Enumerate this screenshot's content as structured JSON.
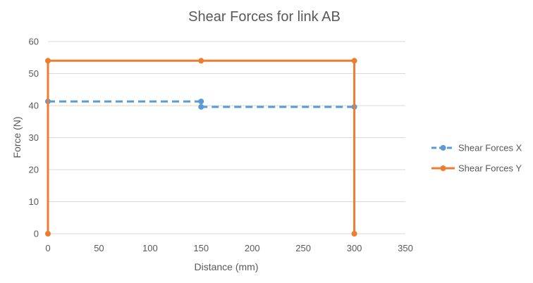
{
  "chart_data": {
    "type": "scatter",
    "title": "Shear Forces for link AB",
    "xlabel": "Distance (mm)",
    "ylabel": "Force (N)",
    "xlim": [
      0,
      350
    ],
    "ylim": [
      0,
      60
    ],
    "xticks": [
      0,
      50,
      100,
      150,
      200,
      250,
      300,
      350
    ],
    "yticks": [
      0,
      10,
      20,
      30,
      40,
      50,
      60
    ],
    "grid": "horizontal",
    "legend_position": "right",
    "series": [
      {
        "name": "Shear Forces X",
        "color": "#5b9bd5",
        "line_style": "dashed",
        "marker": "circle",
        "points": [
          [
            0,
            41.3
          ],
          [
            150,
            41.3
          ],
          [
            150,
            39.6
          ],
          [
            300,
            39.6
          ]
        ]
      },
      {
        "name": "Shear Forces Y",
        "color": "#ed7d31",
        "line_style": "solid",
        "marker": "circle",
        "points": [
          [
            0,
            0
          ],
          [
            0,
            54
          ],
          [
            150,
            54
          ],
          [
            300,
            54
          ],
          [
            300,
            0
          ]
        ]
      }
    ]
  }
}
